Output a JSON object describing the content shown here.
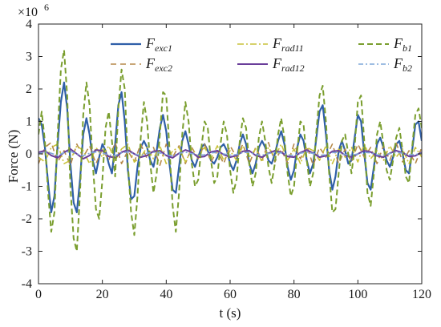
{
  "chart_data": {
    "type": "line",
    "xlabel": "t (s)",
    "ylabel": "Force (N)",
    "y_scale_label": "×10",
    "y_scale_exponent": "6",
    "xlim": [
      0,
      120
    ],
    "ylim": [
      -4,
      4
    ],
    "x_ticks": [
      0,
      20,
      40,
      60,
      80,
      100,
      120
    ],
    "x_tick_labels": [
      "0",
      "20",
      "40",
      "60",
      "80",
      "100",
      "120"
    ],
    "y_ticks": [
      -4,
      -3,
      -2,
      -1,
      0,
      1,
      2,
      3,
      4
    ],
    "y_tick_labels": [
      "-4",
      "-3",
      "-2",
      "-1",
      "0",
      "1",
      "2",
      "3",
      "4"
    ],
    "y_units_note": "values in units of 1e6 N",
    "legend_position": "top",
    "series": [
      {
        "key": "exc1",
        "name_main": "F",
        "name_sub": "exc1",
        "color": "#2f5fa8",
        "dash": "solid",
        "width": 2.2,
        "x": [
          0,
          1,
          2,
          3,
          4,
          5,
          6,
          7,
          8,
          9,
          10,
          11,
          12,
          13,
          14,
          15,
          16,
          17,
          18,
          19,
          20,
          21,
          22,
          23,
          24,
          25,
          26,
          27,
          28,
          29,
          30,
          31,
          32,
          33,
          34,
          35,
          36,
          37,
          38,
          39,
          40,
          41,
          42,
          43,
          44,
          45,
          46,
          47,
          48,
          49,
          50,
          51,
          52,
          53,
          54,
          55,
          56,
          57,
          58,
          59,
          60,
          61,
          62,
          63,
          64,
          65,
          66,
          67,
          68,
          69,
          70,
          71,
          72,
          73,
          74,
          75,
          76,
          77,
          78,
          79,
          80,
          81,
          82,
          83,
          84,
          85,
          86,
          87,
          88,
          89,
          90,
          91,
          92,
          93,
          94,
          95,
          96,
          97,
          98,
          99,
          100,
          101,
          102,
          103,
          104,
          105,
          106,
          107,
          108,
          109,
          110,
          111,
          112,
          113,
          114,
          115,
          116,
          117,
          118,
          119,
          120
        ],
        "y": [
          1.1,
          0.9,
          0.2,
          -0.9,
          -1.8,
          -1.3,
          0.3,
          1.6,
          2.2,
          1.4,
          -0.3,
          -1.5,
          -1.8,
          -0.8,
          0.6,
          1.1,
          0.6,
          -0.2,
          -0.6,
          -0.1,
          0.3,
          0.1,
          -0.3,
          -0.6,
          0.3,
          1.5,
          1.9,
          1.0,
          -0.5,
          -1.4,
          -1.3,
          -0.4,
          0.2,
          0.4,
          0.2,
          -0.2,
          -0.4,
          0.1,
          0.8,
          1.2,
          0.7,
          -0.3,
          -1.1,
          -1.2,
          -0.4,
          0.4,
          0.7,
          0.3,
          -0.2,
          -0.4,
          -0.1,
          0.2,
          0.3,
          0.1,
          -0.2,
          -0.3,
          -0.1,
          0.2,
          0.3,
          0.1,
          -0.3,
          -0.5,
          -0.2,
          0.3,
          0.6,
          0.3,
          -0.3,
          -0.6,
          -0.3,
          0.2,
          0.4,
          0.2,
          -0.2,
          -0.3,
          0.0,
          0.4,
          0.7,
          0.3,
          -0.4,
          -0.8,
          -0.5,
          0.2,
          0.6,
          0.4,
          -0.2,
          -0.6,
          -0.3,
          0.5,
          1.3,
          1.5,
          0.6,
          -0.5,
          -1.1,
          -0.7,
          0.1,
          0.4,
          0.1,
          -0.3,
          -0.2,
          0.5,
          1.2,
          1.0,
          0.0,
          -0.9,
          -1.1,
          -0.4,
          0.3,
          0.5,
          0.2,
          -0.2,
          -0.4,
          -0.1,
          0.3,
          0.4,
          0.0,
          -0.5,
          -0.6,
          0.1,
          0.9,
          1.0,
          0.4
        ]
      },
      {
        "key": "exc2",
        "name_main": "F",
        "name_sub": "exc2",
        "color": "#b5894a",
        "dash": "7,5",
        "width": 1.6,
        "x": [
          0,
          2,
          4,
          6,
          8,
          10,
          12,
          14,
          16,
          18,
          20,
          22,
          24,
          26,
          28,
          30,
          32,
          34,
          36,
          38,
          40,
          42,
          44,
          46,
          48,
          50,
          52,
          54,
          56,
          58,
          60,
          62,
          64,
          66,
          68,
          70,
          72,
          74,
          76,
          78,
          80,
          82,
          84,
          86,
          88,
          90,
          92,
          94,
          96,
          98,
          100,
          102,
          104,
          106,
          108,
          110,
          112,
          114,
          116,
          118,
          120
        ],
        "y": [
          -0.3,
          0.2,
          0.35,
          -0.25,
          0.1,
          -0.35,
          0.3,
          -0.1,
          0.25,
          -0.3,
          0.15,
          -0.2,
          0.35,
          -0.3,
          0.1,
          -0.25,
          0.3,
          -0.15,
          0.2,
          -0.35,
          0.3,
          -0.1,
          0.25,
          -0.3,
          0.2,
          -0.15,
          0.3,
          -0.25,
          0.1,
          -0.3,
          0.25,
          -0.1,
          0.3,
          -0.3,
          0.2,
          -0.2,
          0.35,
          -0.25,
          0.15,
          -0.3,
          0.3,
          -0.15,
          0.25,
          -0.35,
          0.2,
          -0.1,
          0.3,
          -0.3,
          0.15,
          -0.25,
          0.3,
          -0.1,
          0.2,
          -0.3,
          0.25,
          -0.2,
          0.35,
          -0.25,
          0.1,
          -0.3,
          0.2
        ]
      },
      {
        "key": "rad11",
        "name_main": "F",
        "name_sub": "rad11",
        "color": "#c9c23a",
        "dash": "8,3,2,3",
        "width": 1.6,
        "x": [
          0,
          2,
          4,
          6,
          8,
          10,
          12,
          14,
          16,
          18,
          20,
          22,
          24,
          26,
          28,
          30,
          32,
          34,
          36,
          38,
          40,
          42,
          44,
          46,
          48,
          50,
          52,
          54,
          56,
          58,
          60,
          62,
          64,
          66,
          68,
          70,
          72,
          74,
          76,
          78,
          80,
          82,
          84,
          86,
          88,
          90,
          92,
          94,
          96,
          98,
          100,
          102,
          104,
          106,
          108,
          110,
          112,
          114,
          116,
          118,
          120
        ],
        "y": [
          -0.1,
          -0.25,
          0.2,
          0.3,
          -0.3,
          -0.2,
          0.25,
          0.1,
          -0.3,
          0.2,
          -0.1,
          0.25,
          -0.2,
          0.15,
          0.3,
          -0.25,
          -0.1,
          0.2,
          -0.15,
          0.25,
          -0.3,
          0.1,
          0.2,
          -0.25,
          0.15,
          -0.1,
          0.2,
          -0.15,
          0.25,
          -0.2,
          0.1,
          -0.2,
          0.25,
          -0.1,
          0.15,
          -0.25,
          0.2,
          -0.1,
          0.3,
          -0.2,
          0.15,
          -0.3,
          0.2,
          0.1,
          -0.2,
          0.25,
          -0.3,
          0.15,
          -0.1,
          0.2,
          -0.25,
          0.3,
          -0.15,
          0.1,
          -0.2,
          0.25,
          -0.1,
          0.15,
          -0.3,
          0.2,
          -0.1
        ]
      },
      {
        "key": "rad12",
        "name_main": "F",
        "name_sub": "rad12",
        "color": "#6a3d9a",
        "dash": "solid",
        "width": 2.0,
        "x": [
          0,
          2,
          4,
          6,
          8,
          10,
          12,
          14,
          16,
          18,
          20,
          22,
          24,
          26,
          28,
          30,
          32,
          34,
          36,
          38,
          40,
          42,
          44,
          46,
          48,
          50,
          52,
          54,
          56,
          58,
          60,
          62,
          64,
          66,
          68,
          70,
          72,
          74,
          76,
          78,
          80,
          82,
          84,
          86,
          88,
          90,
          92,
          94,
          96,
          98,
          100,
          102,
          104,
          106,
          108,
          110,
          112,
          114,
          116,
          118,
          120
        ],
        "y": [
          0.05,
          0.1,
          -0.05,
          -0.12,
          0.05,
          0.15,
          0.0,
          -0.15,
          -0.05,
          0.12,
          0.1,
          -0.08,
          -0.12,
          0.05,
          0.12,
          0.0,
          -0.1,
          -0.05,
          0.08,
          0.1,
          -0.05,
          -0.12,
          0.02,
          0.12,
          0.05,
          -0.1,
          -0.08,
          0.06,
          0.1,
          -0.02,
          -0.1,
          -0.05,
          0.08,
          0.1,
          -0.05,
          -0.1,
          0.02,
          0.1,
          0.05,
          -0.08,
          -0.1,
          0.04,
          0.12,
          0.02,
          -0.1,
          -0.06,
          0.08,
          0.1,
          -0.04,
          -0.1,
          0.0,
          0.1,
          0.06,
          -0.06,
          -0.1,
          0.02,
          0.1,
          0.04,
          -0.08,
          -0.06,
          0.05
        ]
      },
      {
        "key": "b1",
        "name_main": "F",
        "name_sub": "b1",
        "color": "#7a9e2e",
        "dash": "7,4",
        "width": 2.0,
        "x": [
          0,
          1,
          2,
          3,
          4,
          5,
          6,
          7,
          8,
          9,
          10,
          11,
          12,
          13,
          14,
          15,
          16,
          17,
          18,
          19,
          20,
          21,
          22,
          23,
          24,
          25,
          26,
          27,
          28,
          29,
          30,
          31,
          32,
          33,
          34,
          35,
          36,
          37,
          38,
          39,
          40,
          41,
          42,
          43,
          44,
          45,
          46,
          47,
          48,
          49,
          50,
          51,
          52,
          53,
          54,
          55,
          56,
          57,
          58,
          59,
          60,
          61,
          62,
          63,
          64,
          65,
          66,
          67,
          68,
          69,
          70,
          71,
          72,
          73,
          74,
          75,
          76,
          77,
          78,
          79,
          80,
          81,
          82,
          83,
          84,
          85,
          86,
          87,
          88,
          89,
          90,
          91,
          92,
          93,
          94,
          95,
          96,
          97,
          98,
          99,
          100,
          101,
          102,
          103,
          104,
          105,
          106,
          107,
          108,
          109,
          110,
          111,
          112,
          113,
          114,
          115,
          116,
          117,
          118,
          119,
          120
        ],
        "y": [
          0.6,
          1.3,
          0.4,
          -1.2,
          -2.4,
          -1.8,
          0.6,
          2.6,
          3.2,
          1.8,
          -1.0,
          -2.6,
          -3.0,
          -1.2,
          1.2,
          2.2,
          1.5,
          -0.3,
          -1.7,
          -2.0,
          -0.8,
          0.8,
          1.3,
          0.4,
          -0.7,
          1.4,
          2.6,
          2.0,
          -0.3,
          -1.8,
          -2.5,
          -1.3,
          0.5,
          1.6,
          1.0,
          -0.3,
          -1.2,
          -0.6,
          0.6,
          1.9,
          1.8,
          0.2,
          -1.6,
          -2.4,
          -1.2,
          0.6,
          1.6,
          1.0,
          -0.3,
          -1.0,
          -0.8,
          0.2,
          1.0,
          0.8,
          -0.2,
          -0.9,
          -0.7,
          0.3,
          1.0,
          0.6,
          -0.5,
          -1.2,
          -0.8,
          0.4,
          1.1,
          0.8,
          -0.3,
          -1.0,
          -0.6,
          0.5,
          1.0,
          0.4,
          -0.4,
          -0.9,
          -0.3,
          0.6,
          1.1,
          0.5,
          -0.6,
          -1.3,
          -1.0,
          0.1,
          1.0,
          0.9,
          -0.2,
          -1.0,
          -0.6,
          0.7,
          1.8,
          2.1,
          1.0,
          -0.6,
          -1.8,
          -1.7,
          -0.6,
          0.4,
          0.6,
          0.0,
          -0.6,
          0.2,
          1.6,
          1.8,
          0.4,
          -1.2,
          -1.6,
          -0.6,
          0.6,
          1.0,
          0.3,
          -0.5,
          -0.8,
          -0.2,
          0.5,
          0.8,
          0.1,
          -0.7,
          -0.9,
          0.2,
          1.2,
          1.4,
          0.8
        ]
      },
      {
        "key": "b2",
        "name_main": "F",
        "name_sub": "b2",
        "color": "#7fa7d9",
        "dash": "6,3,2,3",
        "width": 1.6,
        "x": [
          0,
          2,
          4,
          6,
          8,
          10,
          12,
          14,
          16,
          18,
          20,
          22,
          24,
          26,
          28,
          30,
          32,
          34,
          36,
          38,
          40,
          42,
          44,
          46,
          48,
          50,
          52,
          54,
          56,
          58,
          60,
          62,
          64,
          66,
          68,
          70,
          72,
          74,
          76,
          78,
          80,
          82,
          84,
          86,
          88,
          90,
          92,
          94,
          96,
          98,
          100,
          102,
          104,
          106,
          108,
          110,
          112,
          114,
          116,
          118,
          120
        ],
        "y": [
          0.0,
          0.06,
          0.02,
          -0.05,
          0.04,
          0.08,
          0.0,
          -0.06,
          0.02,
          0.06,
          0.03,
          -0.04,
          -0.05,
          0.03,
          0.06,
          0.0,
          -0.05,
          0.02,
          0.05,
          0.03,
          -0.03,
          -0.06,
          0.02,
          0.05,
          0.01,
          -0.04,
          -0.03,
          0.03,
          0.05,
          0.0,
          -0.04,
          -0.02,
          0.04,
          0.05,
          -0.02,
          -0.04,
          0.01,
          0.05,
          0.03,
          -0.03,
          -0.05,
          0.02,
          0.06,
          0.01,
          -0.04,
          -0.03,
          0.04,
          0.05,
          -0.02,
          -0.04,
          0.0,
          0.05,
          0.03,
          -0.03,
          -0.04,
          0.01,
          0.05,
          0.02,
          -0.03,
          -0.02,
          0.02
        ]
      }
    ]
  }
}
